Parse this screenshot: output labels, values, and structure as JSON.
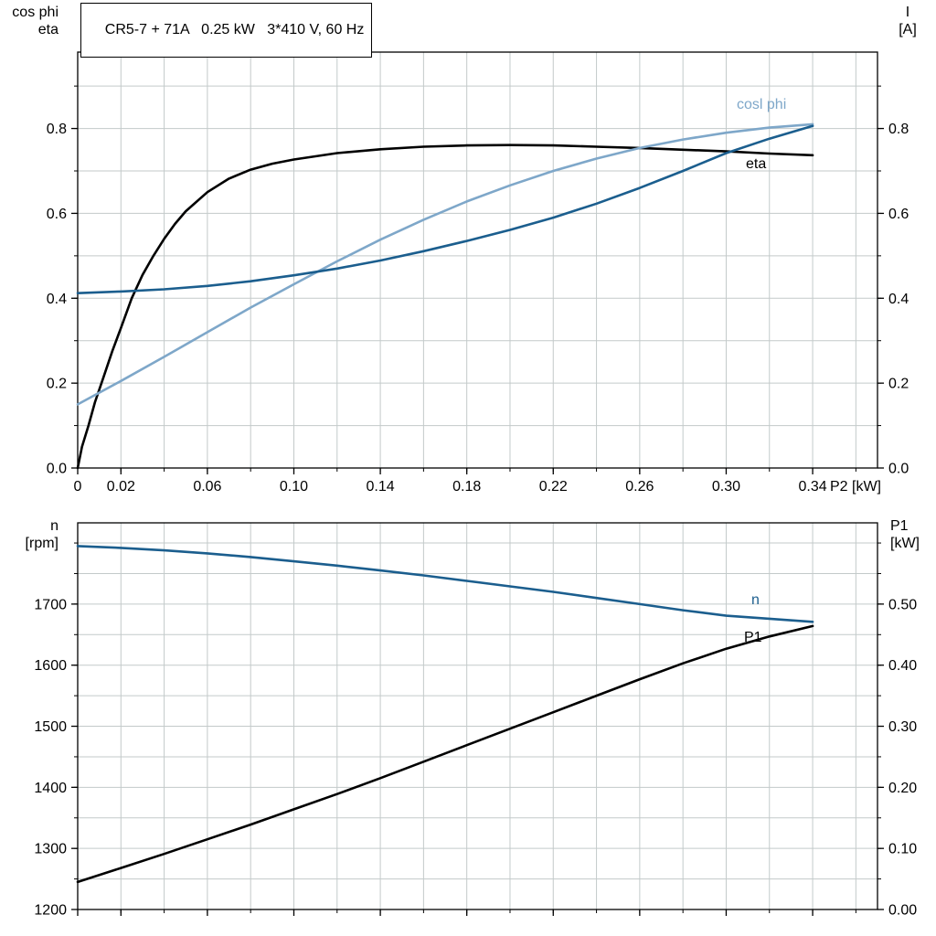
{
  "style": {
    "background": "#ffffff",
    "axis": "#000000",
    "grid": "#c3caca",
    "dark_blue": "#1b5e8e",
    "light_blue": "#7ea7c9",
    "black": "#000000"
  },
  "chart_data": [
    {
      "id": "top",
      "type": "line",
      "title": "CR5-7 + 71A   0.25 kW   3*410 V, 60 Hz",
      "grid": true,
      "legend_position": "inline-right",
      "x_axis": {
        "label": "P2 [kW]",
        "min": 0,
        "max": 0.37,
        "grid_step": 0.02,
        "minor_step": 0.02,
        "show_labels": true,
        "ticks": [
          {
            "v": 0,
            "t": "0"
          },
          {
            "v": 0.02,
            "t": "0.02"
          },
          {
            "v": 0.06,
            "t": "0.06"
          },
          {
            "v": 0.1,
            "t": "0.10"
          },
          {
            "v": 0.14,
            "t": "0.14"
          },
          {
            "v": 0.18,
            "t": "0.18"
          },
          {
            "v": 0.22,
            "t": "0.22"
          },
          {
            "v": 0.26,
            "t": "0.26"
          },
          {
            "v": 0.3,
            "t": "0.30"
          },
          {
            "v": 0.34,
            "t": "0.34"
          }
        ]
      },
      "y_left": {
        "label_line1": "cos phi",
        "label_line2": "eta",
        "min": 0,
        "max": 0.98,
        "grid_step": 0.1,
        "minor_step": 0.1,
        "ticks": [
          {
            "v": 0.0,
            "t": "0.0"
          },
          {
            "v": 0.2,
            "t": "0.2"
          },
          {
            "v": 0.4,
            "t": "0.4"
          },
          {
            "v": 0.6,
            "t": "0.6"
          },
          {
            "v": 0.8,
            "t": "0.8"
          }
        ]
      },
      "y_right": {
        "label_line1": "I",
        "label_line2": "[A]",
        "min": 0,
        "max": 0.98,
        "minor_step": 0.1,
        "ticks": [
          {
            "v": 0.0,
            "t": "0.0"
          },
          {
            "v": 0.2,
            "t": "0.2"
          },
          {
            "v": 0.4,
            "t": "0.4"
          },
          {
            "v": 0.6,
            "t": "0.6"
          },
          {
            "v": 0.8,
            "t": "0.8"
          }
        ]
      },
      "series": [
        {
          "name": "eta",
          "label": "eta",
          "color": "#000000",
          "axis": "left",
          "points": [
            [
              0,
              0
            ],
            [
              0.002,
              0.05
            ],
            [
              0.005,
              0.1
            ],
            [
              0.008,
              0.155
            ],
            [
              0.012,
              0.215
            ],
            [
              0.016,
              0.275
            ],
            [
              0.02,
              0.33
            ],
            [
              0.025,
              0.4
            ],
            [
              0.03,
              0.455
            ],
            [
              0.035,
              0.5
            ],
            [
              0.04,
              0.54
            ],
            [
              0.045,
              0.575
            ],
            [
              0.05,
              0.605
            ],
            [
              0.06,
              0.65
            ],
            [
              0.07,
              0.682
            ],
            [
              0.08,
              0.703
            ],
            [
              0.09,
              0.717
            ],
            [
              0.1,
              0.727
            ],
            [
              0.12,
              0.742
            ],
            [
              0.14,
              0.751
            ],
            [
              0.16,
              0.757
            ],
            [
              0.18,
              0.76
            ],
            [
              0.2,
              0.761
            ],
            [
              0.22,
              0.76
            ],
            [
              0.24,
              0.757
            ],
            [
              0.26,
              0.754
            ],
            [
              0.28,
              0.75
            ],
            [
              0.3,
              0.746
            ],
            [
              0.32,
              0.741
            ],
            [
              0.34,
              0.737
            ]
          ]
        },
        {
          "name": "cos-phi",
          "label": "cosl phi",
          "color": "#7ea7c9",
          "axis": "left",
          "points": [
            [
              0,
              0.15
            ],
            [
              0.02,
              0.205
            ],
            [
              0.04,
              0.262
            ],
            [
              0.06,
              0.32
            ],
            [
              0.08,
              0.378
            ],
            [
              0.1,
              0.433
            ],
            [
              0.12,
              0.487
            ],
            [
              0.14,
              0.538
            ],
            [
              0.16,
              0.585
            ],
            [
              0.18,
              0.628
            ],
            [
              0.2,
              0.666
            ],
            [
              0.22,
              0.7
            ],
            [
              0.24,
              0.729
            ],
            [
              0.26,
              0.754
            ],
            [
              0.28,
              0.774
            ],
            [
              0.3,
              0.79
            ],
            [
              0.32,
              0.802
            ],
            [
              0.34,
              0.81
            ]
          ]
        },
        {
          "name": "current-I",
          "label": "",
          "color": "#1b5e8e",
          "axis": "right",
          "points": [
            [
              0,
              0.412
            ],
            [
              0.02,
              0.416
            ],
            [
              0.04,
              0.421
            ],
            [
              0.06,
              0.429
            ],
            [
              0.08,
              0.44
            ],
            [
              0.1,
              0.454
            ],
            [
              0.12,
              0.47
            ],
            [
              0.14,
              0.489
            ],
            [
              0.16,
              0.511
            ],
            [
              0.18,
              0.535
            ],
            [
              0.2,
              0.561
            ],
            [
              0.22,
              0.59
            ],
            [
              0.24,
              0.623
            ],
            [
              0.26,
              0.66
            ],
            [
              0.28,
              0.7
            ],
            [
              0.3,
              0.742
            ],
            [
              0.32,
              0.776
            ],
            [
              0.34,
              0.806
            ]
          ]
        }
      ]
    },
    {
      "id": "bottom",
      "type": "line",
      "title": "",
      "grid": true,
      "legend_position": "inline-right",
      "x_axis": {
        "label": "",
        "min": 0,
        "max": 0.37,
        "grid_step": 0.02,
        "minor_step": 0.02,
        "show_labels": false,
        "ticks": [
          {
            "v": 0
          },
          {
            "v": 0.02
          },
          {
            "v": 0.06
          },
          {
            "v": 0.1
          },
          {
            "v": 0.14
          },
          {
            "v": 0.18
          },
          {
            "v": 0.22
          },
          {
            "v": 0.26
          },
          {
            "v": 0.3
          },
          {
            "v": 0.34
          }
        ]
      },
      "y_left": {
        "label_line1": "n",
        "label_line2": "[rpm]",
        "min": 1200,
        "max": 1833,
        "grid_step": 50,
        "minor_step": 50,
        "ticks": [
          {
            "v": 1200,
            "t": "1200"
          },
          {
            "v": 1300,
            "t": "1300"
          },
          {
            "v": 1400,
            "t": "1400"
          },
          {
            "v": 1500,
            "t": "1500"
          },
          {
            "v": 1600,
            "t": "1600"
          },
          {
            "v": 1700,
            "t": "1700"
          }
        ]
      },
      "y_right": {
        "label_line1": "P1",
        "label_line2": "[kW]",
        "min": 0,
        "max": 0.633,
        "minor_step": 0.05,
        "ticks": [
          {
            "v": 0.0,
            "t": "0.00"
          },
          {
            "v": 0.1,
            "t": "0.10"
          },
          {
            "v": 0.2,
            "t": "0.20"
          },
          {
            "v": 0.3,
            "t": "0.30"
          },
          {
            "v": 0.4,
            "t": "0.40"
          },
          {
            "v": 0.5,
            "t": "0.50"
          }
        ]
      },
      "series": [
        {
          "name": "speed-n",
          "label": "n",
          "color": "#1b5e8e",
          "axis": "left",
          "points": [
            [
              0,
              1795
            ],
            [
              0.02,
              1792
            ],
            [
              0.04,
              1788
            ],
            [
              0.06,
              1783
            ],
            [
              0.08,
              1777
            ],
            [
              0.1,
              1770
            ],
            [
              0.12,
              1763
            ],
            [
              0.14,
              1755
            ],
            [
              0.16,
              1747
            ],
            [
              0.18,
              1738
            ],
            [
              0.2,
              1729
            ],
            [
              0.22,
              1720
            ],
            [
              0.24,
              1710
            ],
            [
              0.26,
              1700
            ],
            [
              0.28,
              1690
            ],
            [
              0.3,
              1681
            ],
            [
              0.32,
              1676
            ],
            [
              0.34,
              1671
            ]
          ]
        },
        {
          "name": "power-P1",
          "label": "P1",
          "color": "#000000",
          "axis": "right",
          "points": [
            [
              0,
              0.045
            ],
            [
              0.02,
              0.068
            ],
            [
              0.04,
              0.091
            ],
            [
              0.06,
              0.115
            ],
            [
              0.08,
              0.139
            ],
            [
              0.1,
              0.164
            ],
            [
              0.12,
              0.189
            ],
            [
              0.14,
              0.215
            ],
            [
              0.16,
              0.242
            ],
            [
              0.18,
              0.269
            ],
            [
              0.2,
              0.296
            ],
            [
              0.22,
              0.323
            ],
            [
              0.24,
              0.35
            ],
            [
              0.26,
              0.377
            ],
            [
              0.28,
              0.403
            ],
            [
              0.3,
              0.427
            ],
            [
              0.32,
              0.447
            ],
            [
              0.34,
              0.464
            ]
          ]
        }
      ]
    }
  ]
}
